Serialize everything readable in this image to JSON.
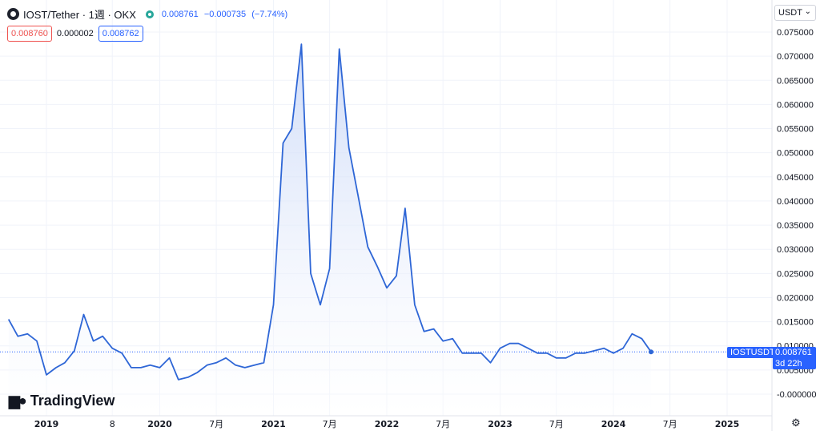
{
  "header": {
    "symbol_title": "IOST/Tether · 1週 · OKX",
    "last": "0.008761",
    "change": "−0.000735",
    "change_pct": "(−7.74%)"
  },
  "quote": {
    "sell": "0.008760",
    "spread": "0.000002",
    "buy": "0.008762"
  },
  "currency": "USDT",
  "branding": "TradingView",
  "price_label": {
    "symbol": "IOSTUSDT",
    "price": "0.008761",
    "countdown": "3d 22h"
  },
  "colors": {
    "line": "#2e66d6",
    "fill_top": "#c7d6f7",
    "grid": "#f0f3fa",
    "price_line": "#2962ff"
  },
  "chart_data": {
    "type": "area",
    "ylim": [
      -0.0015,
      0.0775
    ],
    "y_ticks": [
      0.0,
      0.005,
      0.01,
      0.015,
      0.02,
      0.025,
      0.03,
      0.035,
      0.04,
      0.045,
      0.05,
      0.055,
      0.06,
      0.065,
      0.07,
      0.075
    ],
    "y_tick_labels": [
      "-0.000000",
      "0.005000",
      "0.010000",
      "0.015000",
      "0.020000",
      "0.025000",
      "0.030000",
      "0.035000",
      "0.040000",
      "0.045000",
      "0.050000",
      "0.055000",
      "0.060000",
      "0.065000",
      "0.070000",
      "0.075000"
    ],
    "x_ticks": [
      {
        "date": "2019-01",
        "label": "2019"
      },
      {
        "date": "2019-08",
        "label": "8"
      },
      {
        "date": "2020-01",
        "label": "2020"
      },
      {
        "date": "2020-07",
        "label": "7月"
      },
      {
        "date": "2021-01",
        "label": "2021"
      },
      {
        "date": "2021-07",
        "label": "7月"
      },
      {
        "date": "2022-01",
        "label": "2022"
      },
      {
        "date": "2022-07",
        "label": "7月"
      },
      {
        "date": "2023-01",
        "label": "2023"
      },
      {
        "date": "2023-07",
        "label": "7月"
      },
      {
        "date": "2024-01",
        "label": "2024"
      },
      {
        "date": "2024-07",
        "label": "7月"
      },
      {
        "date": "2025-01",
        "label": "2025"
      }
    ],
    "series": [
      {
        "x": [
          "2018-09",
          "2018-10",
          "2018-11",
          "2018-12",
          "2019-01",
          "2019-02",
          "2019-03",
          "2019-04",
          "2019-05",
          "2019-06",
          "2019-07",
          "2019-08",
          "2019-09",
          "2019-10",
          "2019-11",
          "2019-12",
          "2020-01",
          "2020-02",
          "2020-03",
          "2020-04",
          "2020-05",
          "2020-06",
          "2020-07",
          "2020-08",
          "2020-09",
          "2020-10",
          "2020-11",
          "2020-12",
          "2021-01",
          "2021-02",
          "2021-03",
          "2021-04",
          "2021-05",
          "2021-06",
          "2021-07",
          "2021-08",
          "2021-09",
          "2021-10",
          "2021-11",
          "2021-12",
          "2022-01",
          "2022-02",
          "2022-03",
          "2022-04",
          "2022-05",
          "2022-06",
          "2022-07",
          "2022-08",
          "2022-09",
          "2022-10",
          "2022-11",
          "2022-12",
          "2023-01",
          "2023-02",
          "2023-03",
          "2023-04",
          "2023-05",
          "2023-06",
          "2023-07",
          "2023-08",
          "2023-09",
          "2023-10",
          "2023-11",
          "2023-12",
          "2024-01",
          "2024-02",
          "2024-03",
          "2024-04",
          "2024-05"
        ],
        "values": [
          0.0155,
          0.012,
          0.0125,
          0.011,
          0.004,
          0.0055,
          0.0065,
          0.009,
          0.0165,
          0.011,
          0.012,
          0.0095,
          0.0085,
          0.0055,
          0.0055,
          0.006,
          0.0055,
          0.0075,
          0.003,
          0.0035,
          0.0045,
          0.006,
          0.0065,
          0.0075,
          0.006,
          0.0055,
          0.006,
          0.0065,
          0.0185,
          0.052,
          0.055,
          0.0725,
          0.025,
          0.0185,
          0.026,
          0.0715,
          0.051,
          0.041,
          0.0305,
          0.0265,
          0.022,
          0.0245,
          0.0385,
          0.0185,
          0.013,
          0.0135,
          0.011,
          0.0115,
          0.0085,
          0.0085,
          0.0085,
          0.0065,
          0.0095,
          0.0105,
          0.0105,
          0.0095,
          0.0085,
          0.0085,
          0.0075,
          0.0075,
          0.0085,
          0.0085,
          0.009,
          0.0095,
          0.0085,
          0.0095,
          0.0125,
          0.0115,
          0.008761
        ]
      }
    ]
  }
}
